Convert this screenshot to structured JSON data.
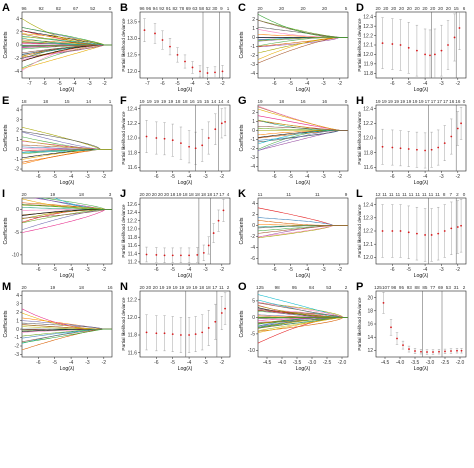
{
  "figure": {
    "panels": [
      {
        "label": "A",
        "kind": "coef",
        "ylabel": "Coefficients",
        "xlabel": "Log(λ)",
        "top_ticks": [
          "96",
          "92",
          "82",
          "67",
          "52",
          "0"
        ],
        "x_ticks": [
          "-7",
          "-6",
          "-5",
          "-4",
          "-3",
          "-2"
        ],
        "y_ticks": [
          "4",
          "2",
          "0",
          "-2",
          "-4"
        ]
      },
      {
        "label": "B",
        "kind": "cv",
        "ylabel": "Partial likelihood deviance",
        "xlabel": "Log(λ)",
        "top_ticks": [
          "96",
          "96",
          "94",
          "92",
          "91",
          "82",
          "78",
          "69",
          "63",
          "58",
          "52",
          "30",
          "9",
          "1"
        ],
        "x_ticks": [
          "-7",
          "-6",
          "-5",
          "-4",
          "-3",
          "-2"
        ],
        "y_ticks": [
          "13.5",
          "13.0",
          "12.5",
          "12.0"
        ]
      },
      {
        "label": "C",
        "kind": "coef",
        "ylabel": "Coefficients",
        "xlabel": "Log(λ)",
        "top_ticks": [
          "20",
          "20",
          "20",
          "20",
          "5"
        ],
        "x_ticks": [
          "-6",
          "-5",
          "-4",
          "-3",
          "-2"
        ],
        "y_ticks": [
          "2",
          "1",
          "0",
          "-1",
          "-2",
          "-3",
          "-4"
        ]
      },
      {
        "label": "D",
        "kind": "cv",
        "ylabel": "Partial likelihood deviance",
        "xlabel": "Log(λ)",
        "top_ticks": [
          "20",
          "20",
          "20",
          "20",
          "20",
          "20",
          "20",
          "20",
          "20",
          "20",
          "15",
          "6"
        ],
        "x_ticks": [
          "-6",
          "-5",
          "-4",
          "-3",
          "-2"
        ],
        "y_ticks": [
          "12.4",
          "12.3",
          "12.2",
          "12.1",
          "12.0",
          "11.9",
          "11.8"
        ]
      },
      {
        "label": "E",
        "kind": "coef",
        "ylabel": "Coefficients",
        "xlabel": "Log(λ)",
        "top_ticks": [
          "18",
          "18",
          "15",
          "14",
          "1"
        ],
        "x_ticks": [
          "-6",
          "-5",
          "-4",
          "-3",
          "-2"
        ],
        "y_ticks": [
          "4",
          "3",
          "2",
          "1",
          "0",
          "-1",
          "-2"
        ]
      },
      {
        "label": "F",
        "kind": "cv",
        "ylabel": "Partial likelihood deviance",
        "xlabel": "Log(λ)",
        "top_ticks": [
          "19",
          "19",
          "19",
          "19",
          "19",
          "18",
          "18",
          "16",
          "15",
          "15",
          "14",
          "14",
          "4"
        ],
        "x_ticks": [
          "-6",
          "-5",
          "-4",
          "-3",
          "-2"
        ],
        "y_ticks": [
          "12.4",
          "12.2",
          "12.0",
          "11.8",
          "11.6"
        ]
      },
      {
        "label": "G",
        "kind": "coef",
        "ylabel": "Coefficients",
        "xlabel": "Log(λ)",
        "top_ticks": [
          "19",
          "18",
          "16",
          "16",
          "0"
        ],
        "x_ticks": [
          "-6",
          "-5",
          "-4",
          "-3",
          "-2"
        ],
        "y_ticks": [
          "2",
          "1",
          "0",
          "-1",
          "-2",
          "-3",
          "-4"
        ]
      },
      {
        "label": "H",
        "kind": "cv",
        "ylabel": "Partial likelihood deviance",
        "xlabel": "Log(λ)",
        "top_ticks": [
          "19",
          "19",
          "19",
          "19",
          "19",
          "19",
          "19",
          "19",
          "17",
          "17",
          "17",
          "17",
          "16",
          "16",
          "0"
        ],
        "x_ticks": [
          "-6",
          "-5",
          "-4",
          "-3",
          "-2"
        ],
        "y_ticks": [
          "12.4",
          "12.2",
          "12.0",
          "11.8",
          "11.6"
        ]
      },
      {
        "label": "I",
        "kind": "coef",
        "ylabel": "Coefficients",
        "xlabel": "Log(λ)",
        "top_ticks": [
          "20",
          "19",
          "18",
          "3"
        ],
        "x_ticks": [
          "-6",
          "-5",
          "-4",
          "-3",
          "-2"
        ],
        "y_ticks": [
          "0",
          "-5",
          "-10"
        ]
      },
      {
        "label": "J",
        "kind": "cv",
        "ylabel": "Partial likelihood deviance",
        "xlabel": "Log(λ)",
        "top_ticks": [
          "20",
          "20",
          "20",
          "20",
          "20",
          "18",
          "19",
          "18",
          "18",
          "18",
          "18",
          "18",
          "17",
          "17",
          "4"
        ],
        "x_ticks": [
          "-6",
          "-5",
          "-4",
          "-3",
          "-2"
        ],
        "y_ticks": [
          "12.6",
          "12.4",
          "12.2",
          "12.0",
          "11.8",
          "11.6",
          "11.4",
          "11.2"
        ]
      },
      {
        "label": "K",
        "kind": "coef",
        "ylabel": "Coefficients",
        "xlabel": "Log(λ)",
        "top_ticks": [
          "11",
          "11",
          "11",
          "9"
        ],
        "x_ticks": [
          "-6",
          "-5",
          "-4",
          "-3",
          "-2"
        ],
        "y_ticks": [
          "4",
          "2",
          "0",
          "-2",
          "-4",
          "-6"
        ]
      },
      {
        "label": "L",
        "kind": "cv",
        "ylabel": "Partial likelihood deviance",
        "xlabel": "Log(λ)",
        "top_ticks": [
          "12",
          "11",
          "11",
          "11",
          "11",
          "11",
          "11",
          "11",
          "11",
          "11",
          "8",
          "7",
          "2",
          "0"
        ],
        "x_ticks": [
          "-6",
          "-5",
          "-4",
          "-3",
          "-2"
        ],
        "y_ticks": [
          "12.4",
          "12.3",
          "12.2",
          "12.1",
          "12.0"
        ]
      },
      {
        "label": "M",
        "kind": "coef",
        "ylabel": "Coefficients",
        "xlabel": "Log(λ)",
        "top_ticks": [
          "20",
          "19",
          "18",
          "16"
        ],
        "x_ticks": [
          "-6",
          "-5",
          "-4",
          "-3",
          "-2"
        ],
        "y_ticks": [
          "4",
          "3",
          "2",
          "1",
          "0",
          "-1",
          "-2",
          "-3"
        ]
      },
      {
        "label": "N",
        "kind": "cv",
        "ylabel": "Partial likelihood deviance",
        "xlabel": "Log(λ)",
        "top_ticks": [
          "20",
          "20",
          "20",
          "19",
          "19",
          "19",
          "19",
          "19",
          "19",
          "18",
          "18",
          "17",
          "11",
          "2"
        ],
        "x_ticks": [
          "-6",
          "-5",
          "-4",
          "-3",
          "-2"
        ],
        "y_ticks": [
          "12.2",
          "12.0",
          "11.8",
          "11.6"
        ]
      },
      {
        "label": "O",
        "kind": "coef",
        "ylabel": "Coefficients",
        "xlabel": "Log(λ)",
        "top_ticks": [
          "125",
          "98",
          "95",
          "84",
          "53",
          "2"
        ],
        "x_ticks": [
          "-4.5",
          "-4.0",
          "-3.5",
          "-3.0",
          "-2.5",
          "-2.0"
        ],
        "y_ticks": [
          "5",
          "0",
          "-5",
          "-10"
        ]
      },
      {
        "label": "P",
        "kind": "cv",
        "ylabel": "Partial likelihood deviance",
        "xlabel": "Log(λ)",
        "top_ticks": [
          "125",
          "107",
          "98",
          "95",
          "93",
          "88",
          "85",
          "77",
          "69",
          "53",
          "31",
          "2"
        ],
        "x_ticks": [
          "-4.5",
          "-4.0",
          "-3.5",
          "-3.0",
          "-2.5",
          "-2.0"
        ],
        "y_ticks": [
          "20",
          "18",
          "16",
          "14",
          "12"
        ]
      }
    ]
  },
  "chart_data": [
    {
      "panel": "A",
      "type": "line",
      "xlabel": "Log(λ)",
      "ylabel": "Coefficients",
      "xlim": [
        -7.5,
        -1.5
      ],
      "ylim": [
        -5,
        5
      ],
      "n_paths": 40,
      "lambda_max": -2,
      "spread": 4.5
    },
    {
      "panel": "B",
      "type": "line",
      "xlabel": "Log(λ)",
      "ylabel": "Partial likelihood deviance",
      "xlim": [
        -7.5,
        -1.5
      ],
      "ylim": [
        11.8,
        13.8
      ],
      "x": [
        -7.2,
        -6.5,
        -6.0,
        -5.5,
        -5.0,
        -4.5,
        -4.0,
        -3.5,
        -3.0,
        -2.5,
        -2.0
      ],
      "y": [
        13.25,
        13.15,
        12.95,
        12.75,
        12.5,
        12.3,
        12.12,
        12.0,
        11.95,
        11.97,
        12.0
      ],
      "err": [
        0.35,
        0.3,
        0.28,
        0.25,
        0.22,
        0.2,
        0.18,
        0.17,
        0.17,
        0.17,
        0.18
      ],
      "vlines": [
        -3.3,
        -2.2
      ]
    },
    {
      "panel": "C",
      "type": "line",
      "xlabel": "Log(λ)",
      "ylabel": "Coefficients",
      "xlim": [
        -7,
        -1.5
      ],
      "ylim": [
        -4.5,
        2.8
      ],
      "n_paths": 20,
      "lambda_max": -2,
      "spread": 3.5
    },
    {
      "panel": "D",
      "type": "line",
      "xlabel": "Log(λ)",
      "ylabel": "Partial likelihood deviance",
      "xlim": [
        -7,
        -1.5
      ],
      "ylim": [
        11.75,
        12.45
      ],
      "x": [
        -6.6,
        -6.0,
        -5.5,
        -5.0,
        -4.5,
        -4.0,
        -3.7,
        -3.4,
        -3.0,
        -2.6,
        -2.2,
        -1.9
      ],
      "y": [
        12.12,
        12.11,
        12.1,
        12.07,
        12.04,
        12.0,
        11.99,
        12.0,
        12.04,
        12.1,
        12.18,
        12.28
      ],
      "err": [
        0.27,
        0.27,
        0.27,
        0.27,
        0.27,
        0.27,
        0.27,
        0.27,
        0.27,
        0.26,
        0.25,
        0.23
      ],
      "vlines": [
        -3.6,
        -2.1
      ]
    },
    {
      "panel": "E",
      "type": "line",
      "xlabel": "Log(λ)",
      "ylabel": "Coefficients",
      "xlim": [
        -7,
        -1.5
      ],
      "ylim": [
        -2.2,
        4.5
      ],
      "n_paths": 18,
      "lambda_max": -2.2,
      "spread": 3
    },
    {
      "panel": "F",
      "type": "line",
      "xlabel": "Log(λ)",
      "ylabel": "Partial likelihood deviance",
      "xlim": [
        -7,
        -1.5
      ],
      "ylim": [
        11.55,
        12.45
      ],
      "x": [
        -6.6,
        -6.0,
        -5.5,
        -5.0,
        -4.5,
        -4.0,
        -3.6,
        -3.2,
        -2.8,
        -2.4,
        -2.0,
        -1.8
      ],
      "y": [
        12.02,
        12.0,
        11.99,
        11.97,
        11.93,
        11.88,
        11.86,
        11.9,
        12.0,
        12.12,
        12.2,
        12.22
      ],
      "err": [
        0.22,
        0.22,
        0.22,
        0.22,
        0.22,
        0.22,
        0.22,
        0.22,
        0.22,
        0.21,
        0.2,
        0.19
      ],
      "vlines": [
        -3.6,
        -2.2
      ]
    },
    {
      "panel": "G",
      "type": "line",
      "xlabel": "Log(λ)",
      "ylabel": "Coefficients",
      "xlim": [
        -7,
        -1.5
      ],
      "ylim": [
        -4.5,
        2.8
      ],
      "n_paths": 19,
      "lambda_max": -2,
      "spread": 3.5
    },
    {
      "panel": "H",
      "type": "line",
      "xlabel": "Log(λ)",
      "ylabel": "Partial likelihood deviance",
      "xlim": [
        -7,
        -1.5
      ],
      "ylim": [
        11.55,
        12.45
      ],
      "x": [
        -6.6,
        -6.0,
        -5.5,
        -5.0,
        -4.5,
        -4.0,
        -3.6,
        -3.2,
        -2.8,
        -2.4,
        -2.0,
        -1.8
      ],
      "y": [
        11.88,
        11.87,
        11.86,
        11.85,
        11.84,
        11.83,
        11.84,
        11.87,
        11.93,
        12.02,
        12.13,
        12.2
      ],
      "err": [
        0.24,
        0.24,
        0.24,
        0.24,
        0.24,
        0.24,
        0.24,
        0.24,
        0.24,
        0.24,
        0.23,
        0.22
      ],
      "vlines": [
        -3.8,
        -2.1
      ]
    },
    {
      "panel": "I",
      "type": "line",
      "xlabel": "Log(λ)",
      "ylabel": "Coefficients",
      "xlim": [
        -7,
        -1.5
      ],
      "ylim": [
        -12,
        2.5
      ],
      "n_paths": 20,
      "lambda_max": -1.9,
      "spread": 7
    },
    {
      "panel": "J",
      "type": "line",
      "xlabel": "Log(λ)",
      "ylabel": "Partial likelihood deviance",
      "xlim": [
        -7,
        -1.5
      ],
      "ylim": [
        11.15,
        12.75
      ],
      "x": [
        -6.6,
        -6.0,
        -5.5,
        -5.0,
        -4.5,
        -4.0,
        -3.5,
        -3.1,
        -2.8,
        -2.5,
        -2.2,
        -1.9
      ],
      "y": [
        11.38,
        11.37,
        11.36,
        11.36,
        11.36,
        11.36,
        11.37,
        11.42,
        11.6,
        11.9,
        12.2,
        12.45
      ],
      "err": [
        0.18,
        0.18,
        0.18,
        0.18,
        0.18,
        0.18,
        0.18,
        0.19,
        0.21,
        0.23,
        0.26,
        0.27
      ],
      "vlines": [
        -3.4,
        -2.7
      ]
    },
    {
      "panel": "K",
      "type": "line",
      "xlabel": "Log(λ)",
      "ylabel": "Coefficients",
      "xlim": [
        -7,
        -1.5
      ],
      "ylim": [
        -7,
        5
      ],
      "n_paths": 11,
      "lambda_max": -2.4,
      "spread": 5
    },
    {
      "panel": "L",
      "type": "line",
      "xlabel": "Log(λ)",
      "ylabel": "Partial likelihood deviance",
      "xlim": [
        -7,
        -1.5
      ],
      "ylim": [
        11.95,
        12.45
      ],
      "x": [
        -6.6,
        -6.0,
        -5.5,
        -5.0,
        -4.5,
        -4.0,
        -3.6,
        -3.2,
        -2.8,
        -2.4,
        -2.0,
        -1.8
      ],
      "y": [
        12.2,
        12.2,
        12.2,
        12.19,
        12.18,
        12.17,
        12.17,
        12.18,
        12.2,
        12.22,
        12.23,
        12.24
      ],
      "err": [
        0.2,
        0.2,
        0.2,
        0.2,
        0.2,
        0.2,
        0.2,
        0.2,
        0.2,
        0.2,
        0.2,
        0.2
      ],
      "vlines": [
        -3.8,
        -2.1
      ]
    },
    {
      "panel": "M",
      "type": "line",
      "xlabel": "Log(λ)",
      "ylabel": "Coefficients",
      "xlim": [
        -7,
        -1.5
      ],
      "ylim": [
        -3.3,
        4.5
      ],
      "n_paths": 20,
      "lambda_max": -2,
      "spread": 3
    },
    {
      "panel": "N",
      "type": "line",
      "xlabel": "Log(λ)",
      "ylabel": "Partial likelihood deviance",
      "xlim": [
        -7,
        -1.5
      ],
      "ylim": [
        11.55,
        12.3
      ],
      "x": [
        -6.6,
        -6.0,
        -5.5,
        -5.0,
        -4.5,
        -4.0,
        -3.6,
        -3.2,
        -2.8,
        -2.4,
        -2.0,
        -1.8
      ],
      "y": [
        11.83,
        11.82,
        11.82,
        11.81,
        11.8,
        11.8,
        11.81,
        11.83,
        11.88,
        11.95,
        12.05,
        12.1
      ],
      "err": [
        0.2,
        0.2,
        0.2,
        0.2,
        0.2,
        0.2,
        0.2,
        0.2,
        0.2,
        0.2,
        0.19,
        0.18
      ],
      "vlines": [
        -4.2,
        -2.3
      ]
    },
    {
      "panel": "O",
      "type": "line",
      "xlabel": "Log(λ)",
      "ylabel": "Coefficients",
      "xlim": [
        -4.8,
        -1.8
      ],
      "ylim": [
        -12,
        8
      ],
      "n_paths": 40,
      "lambda_max": -1.95,
      "spread": 8
    },
    {
      "panel": "P",
      "type": "line",
      "xlabel": "Log(λ)",
      "ylabel": "Partial likelihood deviance",
      "xlim": [
        -4.8,
        -1.8
      ],
      "ylim": [
        11,
        21
      ],
      "x": [
        -4.55,
        -4.3,
        -4.1,
        -3.9,
        -3.7,
        -3.5,
        -3.3,
        -3.1,
        -2.9,
        -2.7,
        -2.5,
        -2.3,
        -2.1,
        -1.95
      ],
      "y": [
        19.2,
        15.5,
        13.8,
        12.8,
        12.2,
        11.9,
        11.8,
        11.75,
        11.75,
        11.8,
        11.85,
        11.9,
        11.95,
        11.95
      ],
      "err": [
        1.6,
        1.2,
        0.9,
        0.6,
        0.45,
        0.4,
        0.35,
        0.35,
        0.35,
        0.35,
        0.35,
        0.35,
        0.35,
        0.35
      ],
      "vlines": [
        -3.25,
        -2.6
      ]
    }
  ]
}
